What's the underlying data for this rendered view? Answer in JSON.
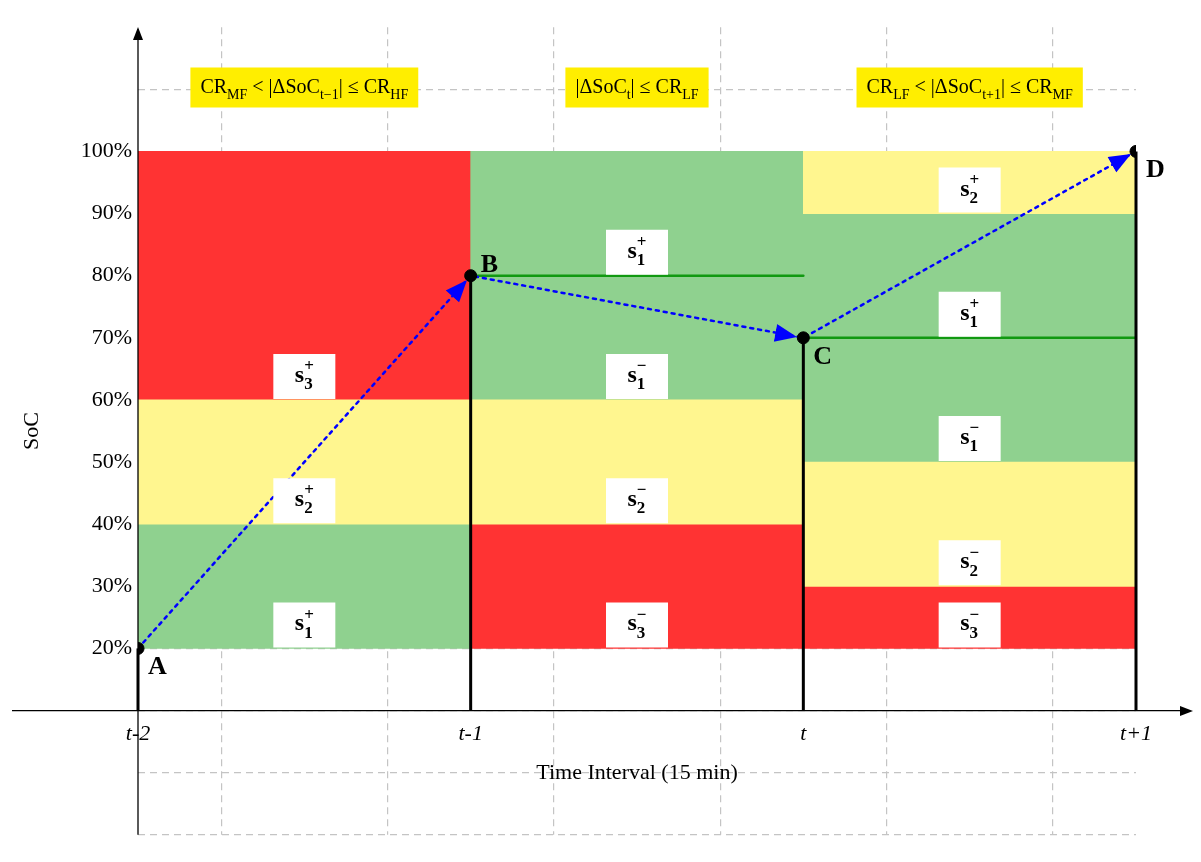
{
  "chart_data": {
    "type": "bar",
    "xlabel": "Time Interval (15 min)",
    "ylabel": "SoC",
    "grid": true,
    "categories": [
      "t-2",
      null,
      "t-1",
      null,
      "t",
      null,
      "t+1"
    ],
    "ylim": [
      -10,
      120
    ],
    "yticks": [
      {
        "value": -10,
        "label": null
      },
      {
        "value": 0,
        "label": null
      },
      {
        "value": 10,
        "label": null
      },
      {
        "value": 20,
        "label": "20%"
      },
      {
        "value": 30,
        "label": "30%"
      },
      {
        "value": 40,
        "label": "40%"
      },
      {
        "value": 50,
        "label": "50%"
      },
      {
        "value": 60,
        "label": "60%"
      },
      {
        "value": 70,
        "label": "70%"
      },
      {
        "value": 80,
        "label": "80%"
      },
      {
        "value": 90,
        "label": "90%"
      },
      {
        "value": 100,
        "label": "100%"
      },
      {
        "value": 110,
        "label": null
      }
    ],
    "ref_lines": [
      {
        "axis": "y",
        "value": 10,
        "color": "#000000"
      }
    ],
    "series": [
      {
        "color": "#ff3333",
        "base": [
          null,
          60,
          null,
          20,
          null,
          20,
          null
        ],
        "values": [
          null,
          40,
          null,
          20,
          null,
          10,
          null
        ]
      },
      {
        "color": "#8fd18f",
        "base": [
          null,
          20,
          null,
          60,
          null,
          50,
          null
        ],
        "values": [
          null,
          20,
          null,
          20,
          null,
          20,
          null
        ]
      },
      {
        "color": "#8fd18f",
        "base": [
          null,
          null,
          null,
          80,
          null,
          70,
          null
        ],
        "values": [
          null,
          null,
          null,
          20,
          null,
          20,
          null
        ]
      },
      {
        "color": "#fff68f",
        "base": [
          null,
          40,
          null,
          40,
          null,
          30,
          null
        ],
        "values": [
          null,
          20,
          null,
          20,
          null,
          20,
          null
        ]
      },
      {
        "color": "#fff68f",
        "base": [
          null,
          null,
          null,
          null,
          null,
          90,
          null
        ],
        "values": [
          null,
          null,
          null,
          null,
          null,
          10,
          null
        ]
      },
      {
        "type": "line",
        "color": "#119911",
        "values": [
          null,
          null,
          80,
          null,
          80,
          null,
          null
        ],
        "marker": "none"
      },
      {
        "type": "line",
        "color": "#119911",
        "values": [
          null,
          null,
          null,
          null,
          70,
          null,
          70
        ],
        "marker": "none"
      },
      {
        "type": "line",
        "color": "#0000ff",
        "values": [
          20,
          null,
          80,
          null,
          70,
          null,
          100
        ],
        "line_style": "dotted",
        "marker": "none"
      },
      {
        "type": "lollipop",
        "color": "#000000",
        "values": [
          20,
          null,
          80,
          null,
          70,
          null,
          100
        ],
        "marker": "circle"
      }
    ],
    "annotations": [
      "CR$_{MF}$ < |ΔSoC$_{t−1}$| ≤ CR$_{HF}$",
      "|ΔSoC$_{t}$| ≤ CR$_{LF}$",
      "CR$_{LF}$ < |ΔSoC$_{t+1}$| ≤ CR$_{MF}$",
      "s$_{3}$$^{+}$",
      "s$_{3}$$^{−}$",
      "s$_{3}$$^{−}$",
      "s$_{1}$$^{+}$",
      "s$_{1}$$^{−}$",
      "s$_{1}$$^{−}$",
      "s$_{1}$$^{+}$",
      "s$_{1}$$^{+}$",
      "s$_{2}$$^{+}$",
      "s$_{2}$$^{−}$",
      "s$_{2}$$^{−}$",
      "s$_{2}$$^{+}$",
      {
        "text": "A",
        "x": "t-2",
        "y": 20
      },
      {
        "text": "B",
        "x": "t-1",
        "y": 80
      },
      {
        "text": "C",
        "x": "t",
        "y": 70
      },
      {
        "text": "D",
        "x": "t+1",
        "y": 100
      }
    ]
  }
}
